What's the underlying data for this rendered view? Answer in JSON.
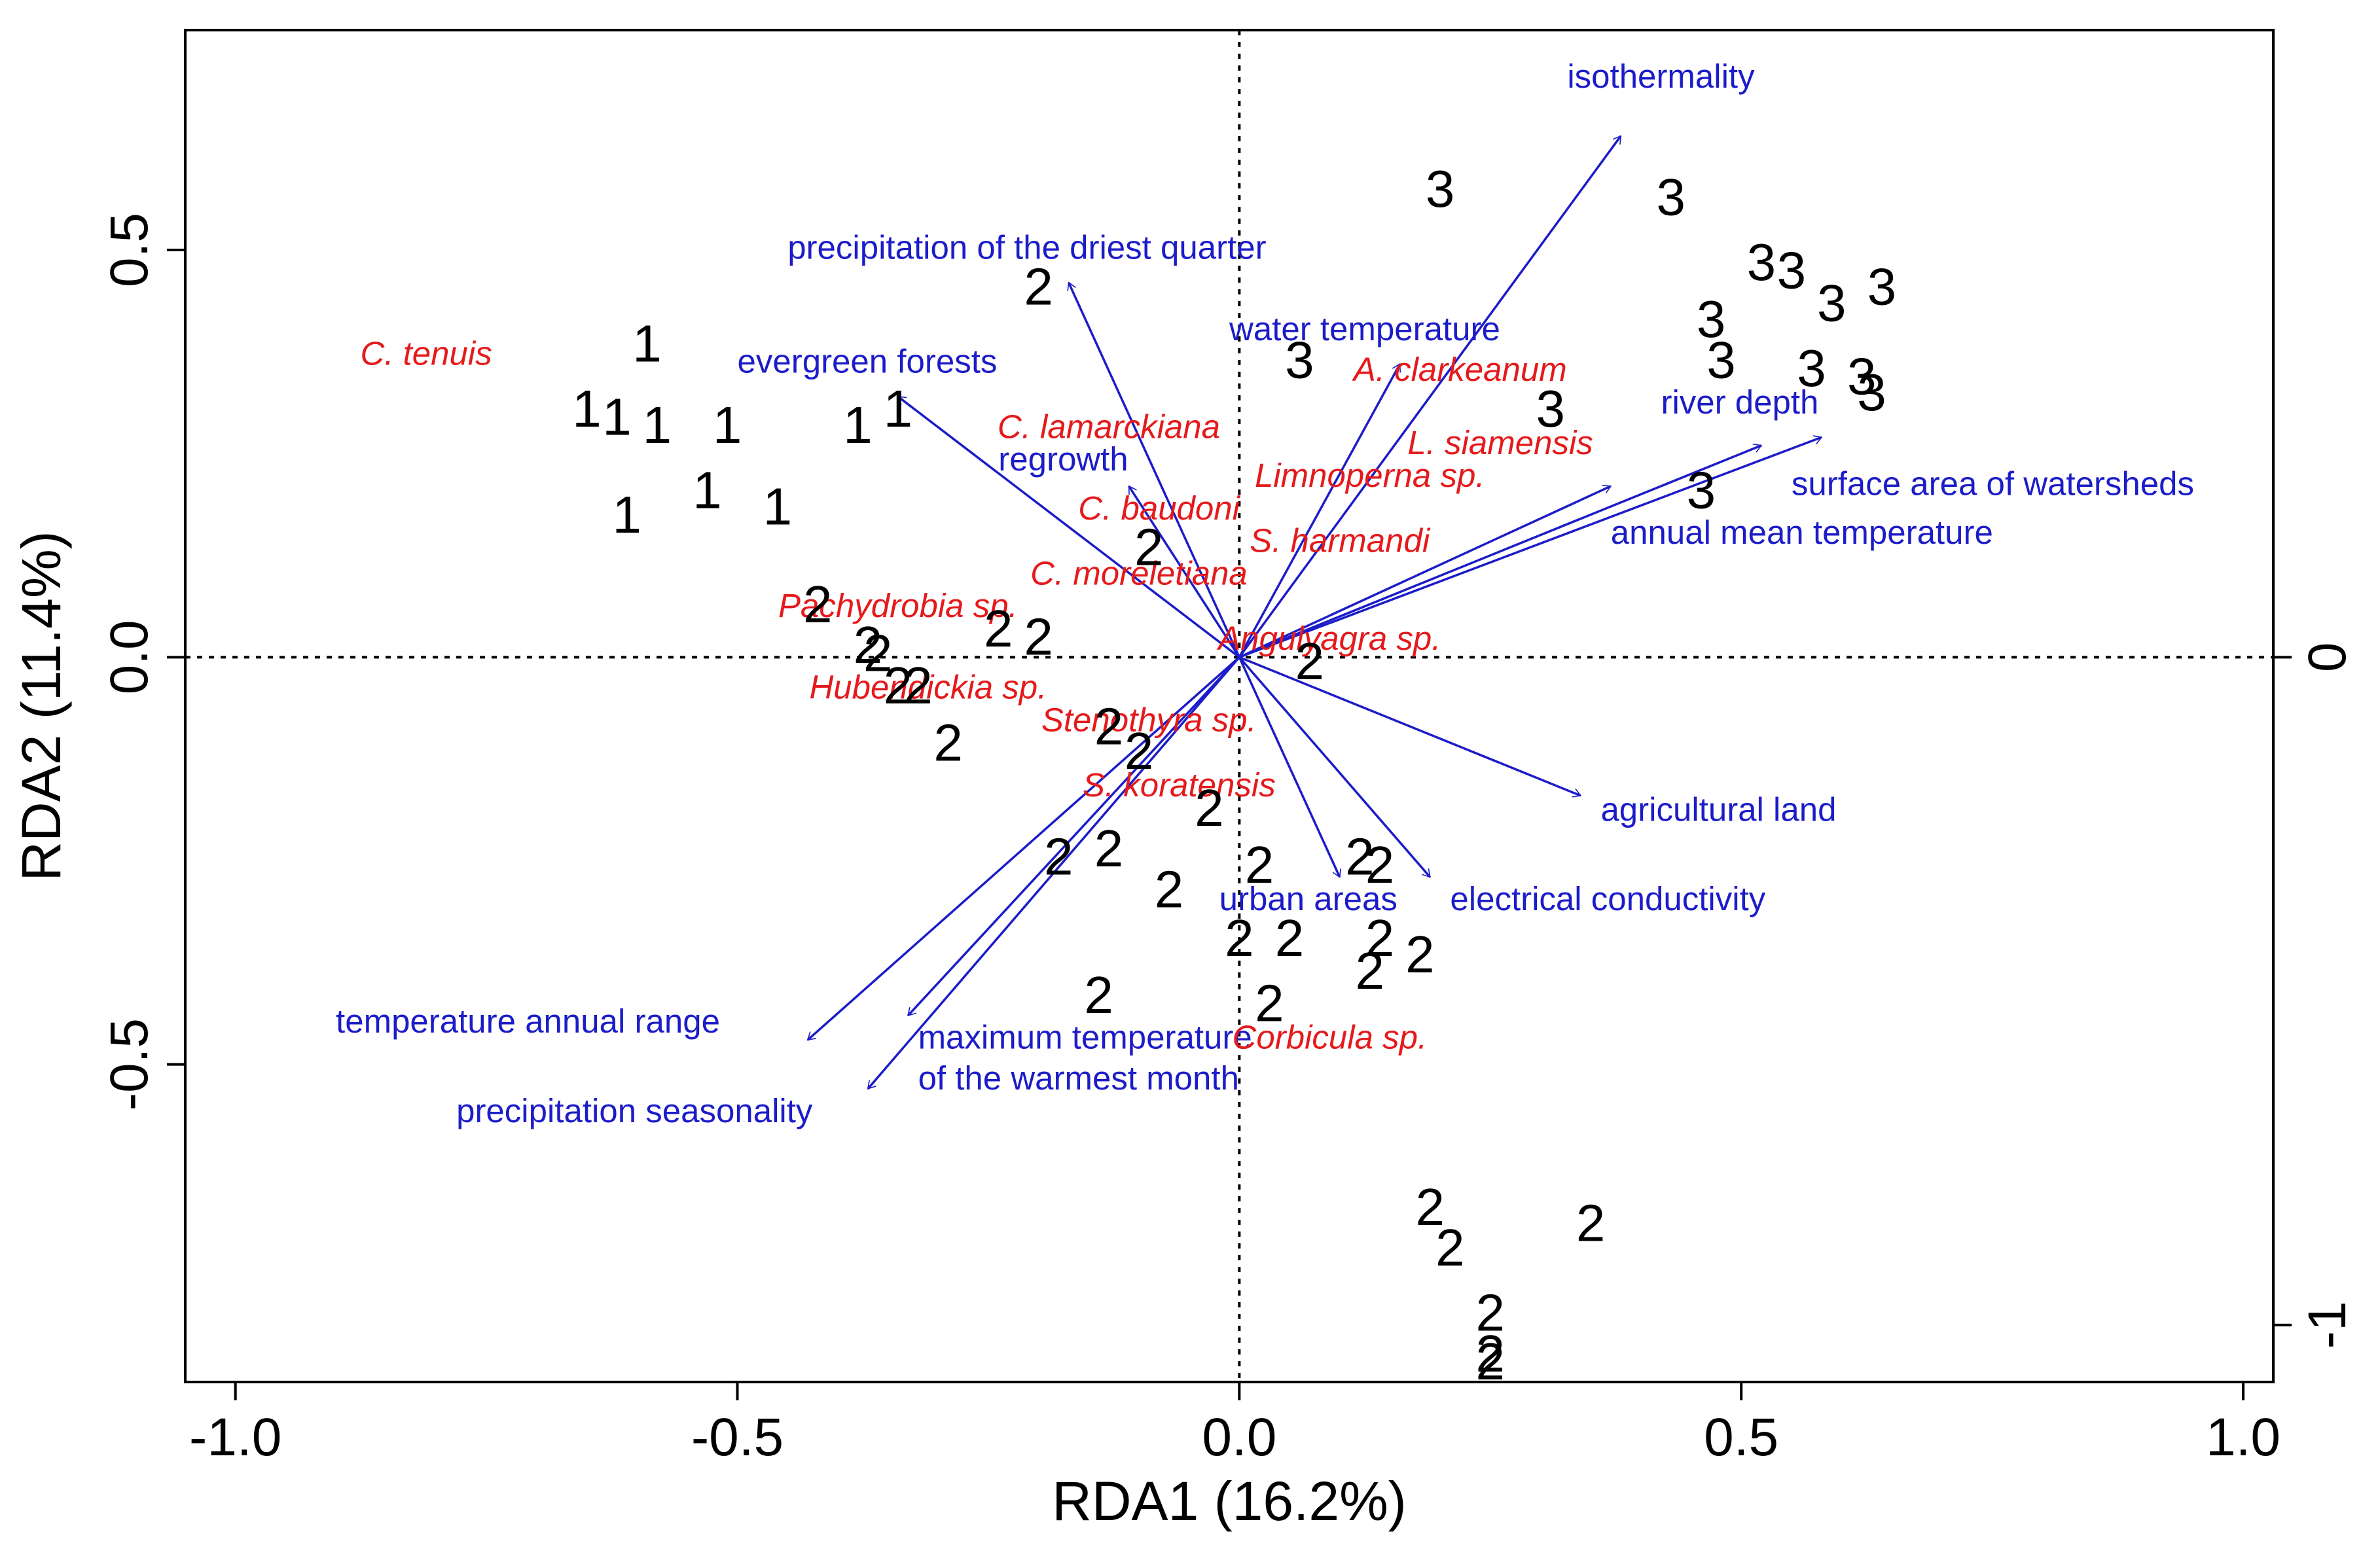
{
  "chart_data": {
    "type": "scatter",
    "xlabel": "RDA1 (16.2%)",
    "ylabel": "RDA2 (11.4%)",
    "xlim": [
      -1.05,
      1.03
    ],
    "ylim": [
      -0.89,
      0.77
    ],
    "x_ticks": [
      {
        "value": -1.0,
        "label": "-1.0"
      },
      {
        "value": -0.5,
        "label": "-0.5"
      },
      {
        "value": 0.0,
        "label": "0.0"
      },
      {
        "value": 0.5,
        "label": "0.5"
      },
      {
        "value": 1.0,
        "label": "1.0"
      }
    ],
    "y_ticks": [
      {
        "value": -0.5,
        "label": "-0.5"
      },
      {
        "value": 0.0,
        "label": "0.0"
      },
      {
        "value": 0.5,
        "label": "0.5"
      }
    ],
    "right_axis": {
      "ticks": [
        {
          "value": 0.0,
          "label": "0"
        },
        {
          "value": -0.82,
          "label": "-1"
        }
      ]
    },
    "colors": {
      "environment": "#1c1cc8",
      "species": "#e41a1c",
      "sites": "#000000"
    },
    "sites": [
      {
        "x": -0.59,
        "y": 0.38,
        "label": "1"
      },
      {
        "x": -0.65,
        "y": 0.3,
        "label": "1"
      },
      {
        "x": -0.62,
        "y": 0.29,
        "label": "1"
      },
      {
        "x": -0.58,
        "y": 0.28,
        "label": "1"
      },
      {
        "x": -0.51,
        "y": 0.28,
        "label": "1"
      },
      {
        "x": -0.38,
        "y": 0.28,
        "label": "1"
      },
      {
        "x": -0.34,
        "y": 0.3,
        "label": "1"
      },
      {
        "x": -0.61,
        "y": 0.17,
        "label": "1"
      },
      {
        "x": -0.53,
        "y": 0.2,
        "label": "1"
      },
      {
        "x": -0.46,
        "y": 0.18,
        "label": "1"
      },
      {
        "x": 0.2,
        "y": 0.57,
        "label": "3"
      },
      {
        "x": 0.43,
        "y": 0.56,
        "label": "3"
      },
      {
        "x": 0.52,
        "y": 0.48,
        "label": "3"
      },
      {
        "x": 0.55,
        "y": 0.47,
        "label": "3"
      },
      {
        "x": 0.64,
        "y": 0.45,
        "label": "3"
      },
      {
        "x": 0.47,
        "y": 0.41,
        "label": "3"
      },
      {
        "x": 0.59,
        "y": 0.43,
        "label": "3"
      },
      {
        "x": 0.48,
        "y": 0.36,
        "label": "3"
      },
      {
        "x": 0.57,
        "y": 0.35,
        "label": "3"
      },
      {
        "x": 0.62,
        "y": 0.34,
        "label": "3"
      },
      {
        "x": 0.63,
        "y": 0.32,
        "label": "3"
      },
      {
        "x": 0.06,
        "y": 0.36,
        "label": "3"
      },
      {
        "x": 0.31,
        "y": 0.3,
        "label": "3"
      },
      {
        "x": 0.46,
        "y": 0.2,
        "label": "3"
      },
      {
        "x": -0.2,
        "y": 0.45,
        "label": "2"
      },
      {
        "x": -0.09,
        "y": 0.13,
        "label": "2"
      },
      {
        "x": -0.42,
        "y": 0.06,
        "label": "2"
      },
      {
        "x": -0.37,
        "y": 0.01,
        "label": "2"
      },
      {
        "x": -0.36,
        "y": 0.0,
        "label": "2"
      },
      {
        "x": -0.34,
        "y": -0.04,
        "label": "2"
      },
      {
        "x": -0.32,
        "y": -0.04,
        "label": "2"
      },
      {
        "x": -0.24,
        "y": 0.03,
        "label": "2"
      },
      {
        "x": -0.2,
        "y": 0.02,
        "label": "2"
      },
      {
        "x": -0.29,
        "y": -0.11,
        "label": "2"
      },
      {
        "x": -0.13,
        "y": -0.09,
        "label": "2"
      },
      {
        "x": -0.1,
        "y": -0.12,
        "label": "2"
      },
      {
        "x": 0.07,
        "y": -0.01,
        "label": "2"
      },
      {
        "x": -0.03,
        "y": -0.19,
        "label": "2"
      },
      {
        "x": -0.18,
        "y": -0.25,
        "label": "2"
      },
      {
        "x": -0.13,
        "y": -0.24,
        "label": "2"
      },
      {
        "x": -0.07,
        "y": -0.29,
        "label": "2"
      },
      {
        "x": 0.02,
        "y": -0.26,
        "label": "2"
      },
      {
        "x": 0.12,
        "y": -0.25,
        "label": "2"
      },
      {
        "x": 0.14,
        "y": -0.26,
        "label": "2"
      },
      {
        "x": 0.0,
        "y": -0.35,
        "label": "2"
      },
      {
        "x": 0.05,
        "y": -0.35,
        "label": "2"
      },
      {
        "x": 0.14,
        "y": -0.35,
        "label": "2"
      },
      {
        "x": 0.13,
        "y": -0.39,
        "label": "2"
      },
      {
        "x": 0.18,
        "y": -0.37,
        "label": "2"
      },
      {
        "x": -0.14,
        "y": -0.42,
        "label": "2"
      },
      {
        "x": 0.03,
        "y": -0.43,
        "label": "2"
      },
      {
        "x": 0.19,
        "y": -0.68,
        "label": "2"
      },
      {
        "x": 0.21,
        "y": -0.73,
        "label": "2"
      },
      {
        "x": 0.35,
        "y": -0.7,
        "label": "2"
      },
      {
        "x": 0.25,
        "y": -0.81,
        "label": "2"
      },
      {
        "x": 0.25,
        "y": -0.86,
        "label": "2"
      },
      {
        "x": 0.25,
        "y": -0.87,
        "label": "2"
      }
    ],
    "environmental_vectors": [
      {
        "name": "isothermality",
        "x": 0.38,
        "y": 0.64
      },
      {
        "name": "precipitation of the driest quarter",
        "x": -0.17,
        "y": 0.46
      },
      {
        "name": "water temperature",
        "x": 0.16,
        "y": 0.36
      },
      {
        "name": "evergreen forests",
        "x": -0.34,
        "y": 0.32
      },
      {
        "name": "regrowth",
        "x": -0.11,
        "y": 0.21
      },
      {
        "name": "river depth",
        "x": 0.52,
        "y": 0.26
      },
      {
        "name": "surface area of watersheds",
        "x": 0.58,
        "y": 0.27
      },
      {
        "name": "annual mean temperature",
        "x": 0.37,
        "y": 0.21
      },
      {
        "name": "agricultural land",
        "x": 0.34,
        "y": -0.17
      },
      {
        "name": "electrical conductivity",
        "x": 0.19,
        "y": -0.27
      },
      {
        "name": "urban areas",
        "x": 0.1,
        "y": -0.27
      },
      {
        "name": "temperature annual range",
        "x": -0.43,
        "y": -0.47
      },
      {
        "name": "maximum temperature of the warmest month",
        "x": -0.33,
        "y": -0.44
      },
      {
        "name": "precipitation seasonality",
        "x": -0.37,
        "y": -0.53
      }
    ],
    "environmental_labels": [
      {
        "text": "isothermality",
        "x": 0.42,
        "y": 0.71,
        "anchor": "middle"
      },
      {
        "text": "precipitation of the driest quarter",
        "x": -0.45,
        "y": 0.5,
        "anchor": "start"
      },
      {
        "text": "water temperature",
        "x": -0.01,
        "y": 0.4,
        "anchor": "start"
      },
      {
        "text": "evergreen forests",
        "x": -0.5,
        "y": 0.36,
        "anchor": "start"
      },
      {
        "text": "regrowth",
        "x": -0.24,
        "y": 0.24,
        "anchor": "start"
      },
      {
        "text": "river depth",
        "x": 0.42,
        "y": 0.31,
        "anchor": "start"
      },
      {
        "text": "surface area of watersheds",
        "x": 0.55,
        "y": 0.21,
        "anchor": "start"
      },
      {
        "text": "annual mean temperature",
        "x": 0.37,
        "y": 0.15,
        "anchor": "start"
      },
      {
        "text": "agricultural land",
        "x": 0.36,
        "y": -0.19,
        "anchor": "start"
      },
      {
        "text": "electrical conductivity",
        "x": 0.21,
        "y": -0.3,
        "anchor": "start"
      },
      {
        "text": "urban areas",
        "x": -0.02,
        "y": -0.3,
        "anchor": "start"
      },
      {
        "text": "temperature annual range",
        "x": -0.9,
        "y": -0.45,
        "anchor": "start"
      },
      {
        "text": "maximum temperature",
        "x": -0.32,
        "y": -0.47,
        "anchor": "start"
      },
      {
        "text": "of the warmest month",
        "x": -0.32,
        "y": -0.52,
        "anchor": "start"
      },
      {
        "text": "precipitation seasonality",
        "x": -0.78,
        "y": -0.56,
        "anchor": "start"
      }
    ],
    "species": [
      {
        "text": "C. tenuis",
        "x": -0.81,
        "y": 0.37
      },
      {
        "text": "A. clarkeanum",
        "x": 0.22,
        "y": 0.35
      },
      {
        "text": "C. lamarckiana",
        "x": -0.13,
        "y": 0.28
      },
      {
        "text": "L. siamensis",
        "x": 0.26,
        "y": 0.26
      },
      {
        "text": "Limnoperna sp.",
        "x": 0.13,
        "y": 0.22
      },
      {
        "text": "C. baudoni",
        "x": -0.08,
        "y": 0.18
      },
      {
        "text": "S. harmandi",
        "x": 0.1,
        "y": 0.14
      },
      {
        "text": "C. moreletiana",
        "x": -0.1,
        "y": 0.1
      },
      {
        "text": "Pachydrobia sp.",
        "x": -0.34,
        "y": 0.06
      },
      {
        "text": "Angulyagra sp.",
        "x": 0.09,
        "y": 0.02
      },
      {
        "text": "Hubendickia sp.",
        "x": -0.31,
        "y": -0.04
      },
      {
        "text": "Stenothyra sp.",
        "x": -0.09,
        "y": -0.08
      },
      {
        "text": "S. koratensis",
        "x": -0.06,
        "y": -0.16
      },
      {
        "text": "Corbicula sp.",
        "x": 0.09,
        "y": -0.47
      }
    ]
  }
}
